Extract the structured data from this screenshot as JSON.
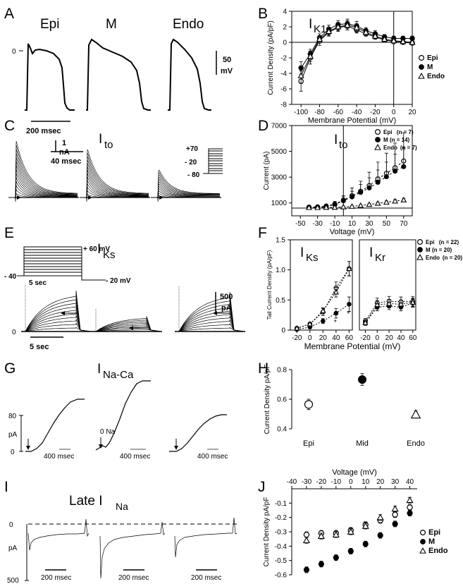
{
  "panels": {
    "A": {
      "label": "A",
      "titles": [
        "Epi",
        "M",
        "Endo"
      ],
      "zero": "0",
      "scale_v": "50",
      "scale_v2": "mV",
      "scale_t": "200 msec"
    },
    "C": {
      "label": "C",
      "title_main": "I",
      "title_sub": "to",
      "scale_i": "1",
      "scale_i2": "nA",
      "scale_t": "40 msec",
      "protocol": [
        "+70",
        "- 20",
        "- 80"
      ]
    },
    "E": {
      "label": "E",
      "title_main": "I",
      "title_sub": "Ks",
      "protocol_top": "+ 60 mV",
      "protocol_left": "- 40",
      "protocol_right": "- 20 mV",
      "protocol_dur": "5 sec",
      "scale_i": "500",
      "scale_i2": "pA",
      "zero": "0",
      "scale_t": "5 sec"
    },
    "G": {
      "label": "G",
      "title_main": "I",
      "title_sub": "Na-Ca",
      "ytick": "80",
      "yunit": "pA",
      "zero": "0",
      "na_label": "0 Na",
      "scale_t": "400 msec"
    },
    "I": {
      "label": "I",
      "title_main": "Late I",
      "title_sub": "Na",
      "zero": "0",
      "yunit": "pA",
      "ybottom": "500",
      "scale_t": "200 msec"
    }
  },
  "chart_data": [
    {
      "panel": "B",
      "type": "line",
      "title_main": "I",
      "title_sub": "K1",
      "xlabel": "Membrane Potential (mV)",
      "ylabel": "Current Density (pA/pF)",
      "xlim": [
        -110,
        20
      ],
      "ylim": [
        -8,
        4
      ],
      "xticks": [
        -100,
        -80,
        -60,
        -40,
        -20,
        0,
        20
      ],
      "yticks": [
        -8,
        -6,
        -4,
        -2,
        0,
        2,
        4
      ],
      "x": [
        -100,
        -90,
        -80,
        -70,
        -60,
        -50,
        -40,
        -30,
        -20,
        -10,
        0,
        10,
        20
      ],
      "series": [
        {
          "name": "Epi",
          "marker": "circle-open",
          "values": [
            -5.0,
            -2.0,
            0.2,
            1.3,
            1.9,
            2.1,
            1.6,
            1.1,
            0.7,
            0.3,
            0.1,
            0.0,
            -0.1
          ],
          "err": [
            1.3,
            0.8,
            0.6,
            0.5,
            0.5,
            0.5,
            0.4,
            0.3,
            0.3,
            0.2,
            0.2,
            0.2,
            0.2
          ]
        },
        {
          "name": "M",
          "marker": "circle-filled",
          "values": [
            -3.3,
            -1.5,
            0.6,
            1.7,
            2.3,
            2.4,
            2.1,
            1.5,
            1.1,
            0.7,
            0.5,
            0.5,
            0.5
          ],
          "err": [
            0.8,
            0.6,
            0.5,
            0.5,
            0.5,
            0.6,
            0.6,
            0.4,
            0.4,
            0.3,
            0.3,
            0.3,
            0.3
          ]
        },
        {
          "name": "Endo",
          "marker": "triangle-open",
          "values": [
            -4.3,
            -1.8,
            0.4,
            1.4,
            2.0,
            2.2,
            1.9,
            1.3,
            0.8,
            0.4,
            0.2,
            0.1,
            0.0
          ],
          "err": [
            1.0,
            0.7,
            0.5,
            0.5,
            0.5,
            0.6,
            0.5,
            0.4,
            0.3,
            0.3,
            0.2,
            0.2,
            0.2
          ]
        }
      ]
    },
    {
      "panel": "D",
      "type": "line",
      "title_main": "I",
      "title_sub": "to",
      "xlabel": "Voltage (mV)",
      "ylabel": "Current (pA)",
      "xlim": [
        -60,
        80
      ],
      "ylim": [
        0,
        7000
      ],
      "xticks": [
        -50,
        -30,
        -10,
        10,
        30,
        50,
        70
      ],
      "yticks": [
        1000,
        3000,
        5000,
        7000
      ],
      "x": [
        -40,
        -30,
        -20,
        -10,
        0,
        10,
        20,
        30,
        40,
        50,
        60,
        70
      ],
      "series": [
        {
          "name": "Epi",
          "n_label": "(n = 7)",
          "marker": "circle-open",
          "values": [
            80,
            100,
            180,
            350,
            700,
            1100,
            1500,
            2000,
            2600,
            3100,
            3600,
            4200
          ],
          "err": [
            40,
            60,
            100,
            250,
            400,
            700,
            900,
            1200,
            1500,
            1800,
            2200,
            2500
          ]
        },
        {
          "name": "M",
          "n_label": "(n = 14)",
          "marker": "circle-filled",
          "values": [
            60,
            80,
            150,
            300,
            650,
            1000,
            1400,
            1800,
            2300,
            2800,
            3300,
            3700
          ],
          "err": [
            30,
            50,
            80,
            200,
            350,
            500,
            700,
            900,
            1100,
            1300,
            1500,
            1700
          ]
        },
        {
          "name": "Endo",
          "n_label": "(n = 7)",
          "marker": "triangle-open",
          "values": [
            40,
            40,
            50,
            60,
            100,
            150,
            230,
            320,
            420,
            520,
            620,
            720
          ],
          "err": [
            20,
            20,
            30,
            30,
            40,
            50,
            60,
            80,
            100,
            120,
            140,
            160
          ]
        }
      ]
    },
    {
      "panel": "F",
      "type": "line",
      "subplots": [
        {
          "title_main": "I",
          "title_sub": "Ks",
          "x": [
            -20,
            0,
            20,
            40,
            60
          ],
          "series": [
            {
              "name": "Epi",
              "marker": "circle-open",
              "values": [
                0.03,
                0.1,
                0.3,
                0.7,
                1.02
              ],
              "err": [
                0.02,
                0.03,
                0.06,
                0.1,
                0.12
              ]
            },
            {
              "name": "M",
              "marker": "circle-filled",
              "values": [
                0.01,
                0.05,
                0.15,
                0.28,
                0.43
              ],
              "err": [
                0.01,
                0.02,
                0.04,
                0.08,
                0.12
              ]
            },
            {
              "name": "Endo",
              "marker": "triangle-open",
              "values": [
                0.03,
                0.1,
                0.32,
                0.63,
                1.02
              ],
              "err": [
                0.02,
                0.03,
                0.05,
                0.08,
                0.12
              ]
            }
          ]
        },
        {
          "title_main": "I",
          "title_sub": "Kr",
          "x": [
            -20,
            0,
            20,
            40,
            60
          ],
          "series": [
            {
              "name": "Epi",
              "marker": "circle-open",
              "values": [
                0.15,
                0.45,
                0.48,
                0.47,
                0.48
              ],
              "err": [
                0.04,
                0.08,
                0.08,
                0.08,
                0.08
              ]
            },
            {
              "name": "M",
              "marker": "circle-filled",
              "values": [
                0.12,
                0.38,
                0.4,
                0.38,
                0.45
              ],
              "err": [
                0.04,
                0.06,
                0.06,
                0.06,
                0.07
              ]
            },
            {
              "name": "Endo",
              "marker": "triangle-open",
              "values": [
                0.12,
                0.42,
                0.44,
                0.43,
                0.46
              ],
              "err": [
                0.04,
                0.07,
                0.07,
                0.07,
                0.07
              ]
            }
          ]
        }
      ],
      "xlabel": "Membrane Potential (mV)",
      "ylabel": "Tail Current Density (pA/pF)",
      "ylim": [
        0,
        1.5
      ],
      "yticks": [
        0,
        0.5,
        1.0,
        1.5
      ],
      "ytick_labels": [
        "0",
        "0.5",
        "1.0",
        "1.5"
      ],
      "xticks": [
        -20,
        0,
        20,
        40,
        60
      ],
      "legend": [
        {
          "name": "Epi",
          "n_label": "(n = 22)"
        },
        {
          "name": "M",
          "n_label": "(n = 20)"
        },
        {
          "name": "Endo",
          "n_label": "(n = 20)"
        }
      ],
      "annotations": [
        "*",
        "*"
      ]
    },
    {
      "panel": "H",
      "type": "scatter",
      "ylabel": "Current Density pA/pF",
      "categories": [
        "Epi",
        "Mid",
        "Endo"
      ],
      "ylim": [
        0.4,
        0.8
      ],
      "yticks": [
        0.4,
        0.6,
        0.8
      ],
      "ytick_labels": [
        "0.4",
        "0.6",
        "0.8"
      ],
      "values": [
        0.565,
        0.733,
        0.497
      ],
      "err": [
        0.035,
        0.04,
        0.025
      ],
      "markers": [
        "circle-open",
        "circle-filled",
        "triangle-open"
      ]
    },
    {
      "panel": "J",
      "type": "scatter",
      "xlabel": "Voltage (mV)",
      "ylabel": "Current Density pA/pF",
      "xlim": [
        -40,
        45
      ],
      "ylim": [
        -0.6,
        0
      ],
      "xticks": [
        -40,
        -30,
        -20,
        -10,
        0,
        10,
        20,
        30,
        40
      ],
      "yticks": [
        -0.6,
        -0.5,
        -0.4,
        -0.3,
        -0.2,
        -0.1
      ],
      "ytick_labels": [
        "-0.6",
        "-0.5",
        "-0.4",
        "-0.3",
        "-0.2",
        "-0.1"
      ],
      "x": [
        -30,
        -20,
        -10,
        0,
        10,
        20,
        30,
        40
      ],
      "series": [
        {
          "name": "Epi",
          "marker": "circle-open",
          "values": [
            -0.32,
            -0.31,
            -0.31,
            -0.29,
            -0.25,
            -0.22,
            -0.18,
            -0.13
          ],
          "err": [
            0.02,
            0.02,
            0.02,
            0.02,
            0.02,
            0.02,
            0.02,
            0.02
          ]
        },
        {
          "name": "M",
          "marker": "circle-filled",
          "values": [
            -0.565,
            -0.525,
            -0.48,
            -0.435,
            -0.385,
            -0.325,
            -0.245,
            -0.17
          ],
          "err": [
            0.02,
            0.02,
            0.02,
            0.02,
            0.02,
            0.02,
            0.02,
            0.02
          ]
        },
        {
          "name": "Endo",
          "marker": "triangle-open",
          "values": [
            -0.36,
            -0.33,
            -0.32,
            -0.3,
            -0.26,
            -0.2,
            -0.14,
            -0.08
          ],
          "err": [
            0.02,
            0.02,
            0.02,
            0.02,
            0.02,
            0.02,
            0.02,
            0.02
          ]
        }
      ]
    }
  ]
}
